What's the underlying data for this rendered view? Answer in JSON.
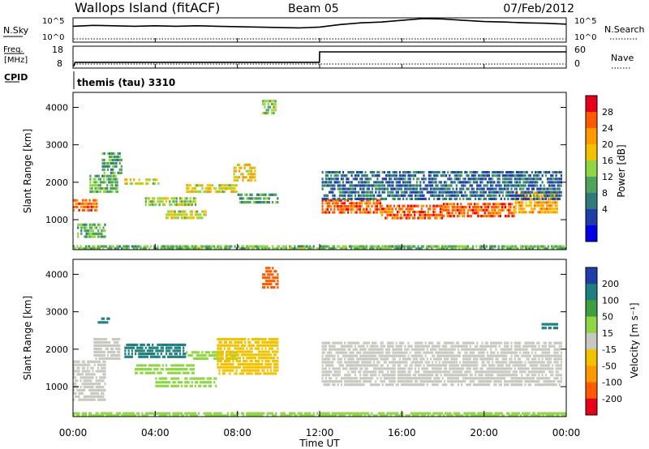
{
  "header": {
    "title": "Wallops Island (fitACF)",
    "beam": "Beam 05",
    "date": "07/Feb/2012"
  },
  "panels": {
    "nsky": {
      "label": "N.Sky",
      "ticks": [
        "10^5",
        "10^0"
      ]
    },
    "nsearch": {
      "label": "N.Search",
      "ticks": [
        "10^5",
        "10^0"
      ]
    },
    "freq": {
      "label_top": "Freq.",
      "label_unit": "[MHz]",
      "ticks": [
        "18",
        "8"
      ]
    },
    "nave": {
      "label": "Nave",
      "ticks": [
        "60",
        "0"
      ]
    },
    "cpid": {
      "label": "CPID",
      "value": "themis (tau) 3310"
    }
  },
  "axes": {
    "ylabel": "Slant Range [km]",
    "xlabel": "Time UT",
    "yticks": [
      "4000",
      "3000",
      "2000",
      "1000"
    ],
    "xticks": [
      "00:00",
      "04:00",
      "08:00",
      "12:00",
      "16:00",
      "20:00",
      "00:00"
    ]
  },
  "colorbars": {
    "power": {
      "label": "Power [dB]",
      "ticks": [
        "28",
        "24",
        "20",
        "16",
        "12",
        "8",
        "4"
      ],
      "colors": [
        "#e8001a",
        "#ff5a00",
        "#ff9900",
        "#f2c200",
        "#8fd646",
        "#4fa35c",
        "#2f7b7b",
        "#1f3ea8",
        "#0000e6"
      ]
    },
    "velocity": {
      "label": "Velocity [m s⁻¹]",
      "ticks": [
        "200",
        "100",
        "50",
        "15",
        "-15",
        "-50",
        "-100",
        "-200"
      ],
      "colors": [
        "#1f3ea8",
        "#1f7f7f",
        "#3f9f3f",
        "#8fd646",
        "#c8c8c0",
        "#f2c200",
        "#ff9900",
        "#ff5a00",
        "#e8001a"
      ]
    }
  },
  "chart_data": [
    {
      "type": "line",
      "name": "nsky",
      "xlim": [
        0,
        24
      ],
      "x": [
        0,
        1,
        2,
        3,
        4,
        5,
        6,
        7,
        8,
        9,
        10,
        11,
        12,
        13,
        14,
        15,
        16,
        17,
        18,
        19,
        20,
        21,
        22,
        23,
        24
      ],
      "y": [
        3.2,
        3.4,
        3.3,
        3.2,
        3.3,
        3.2,
        3.3,
        3.2,
        3.1,
        3.0,
        2.9,
        2.8,
        3.0,
        3.6,
        4.0,
        4.2,
        4.6,
        5.0,
        4.9,
        4.6,
        4.3,
        4.2,
        4.0,
        3.9,
        3.7
      ]
    },
    {
      "type": "line",
      "name": "frequency",
      "xlim": [
        0,
        24
      ],
      "ylim": [
        8,
        18
      ],
      "x": [
        0,
        0.05,
        0.1,
        11.99,
        12.0,
        24
      ],
      "y": [
        8.5,
        8.5,
        10.3,
        10.3,
        16.2,
        16.2
      ]
    },
    {
      "type": "heatmap",
      "name": "power",
      "xlim": [
        0,
        24
      ],
      "ylim": [
        200,
        4400
      ],
      "xlabel": "Time UT",
      "ylabel": "Slant Range [km]",
      "colorbar": "Power [dB]",
      "xticks": [
        "00:00",
        "04:00",
        "08:00",
        "12:00",
        "16:00",
        "20:00",
        "00:00"
      ],
      "yticks": [
        4000,
        3000,
        2000,
        1000
      ],
      "bands": [
        {
          "t0": 0.0,
          "t1": 1.2,
          "r0": 1200,
          "r1": 1550,
          "level": 26
        },
        {
          "t0": 0.2,
          "t1": 1.6,
          "r0": 500,
          "r1": 900,
          "level": 14
        },
        {
          "t0": 0.8,
          "t1": 2.2,
          "r0": 1700,
          "r1": 2200,
          "level": 14
        },
        {
          "t0": 1.4,
          "t1": 2.4,
          "r0": 2200,
          "r1": 2800,
          "level": 12
        },
        {
          "t0": 2.5,
          "t1": 4.2,
          "r0": 1900,
          "r1": 2100,
          "level": 18
        },
        {
          "t0": 3.5,
          "t1": 6.0,
          "r0": 1350,
          "r1": 1600,
          "level": 16
        },
        {
          "t0": 4.5,
          "t1": 6.5,
          "r0": 1000,
          "r1": 1250,
          "level": 18
        },
        {
          "t0": 5.5,
          "t1": 8.0,
          "r0": 1700,
          "r1": 1950,
          "level": 18
        },
        {
          "t0": 7.8,
          "t1": 8.9,
          "r0": 2000,
          "r1": 2500,
          "level": 20
        },
        {
          "t0": 8.0,
          "t1": 10.0,
          "r0": 1400,
          "r1": 1700,
          "level": 12
        },
        {
          "t0": 9.2,
          "t1": 9.9,
          "r0": 3800,
          "r1": 4200,
          "level": 16
        },
        {
          "t0": 12.1,
          "t1": 15.0,
          "r0": 1150,
          "r1": 1550,
          "level": 26
        },
        {
          "t0": 15.0,
          "t1": 18.0,
          "r0": 1000,
          "r1": 1400,
          "level": 26
        },
        {
          "t0": 18.0,
          "t1": 21.5,
          "r0": 1050,
          "r1": 1450,
          "level": 26
        },
        {
          "t0": 21.5,
          "t1": 23.6,
          "r0": 1150,
          "r1": 1750,
          "level": 22
        },
        {
          "t0": 12.1,
          "t1": 23.8,
          "r0": 1500,
          "r1": 2300,
          "level": 8
        },
        {
          "t0": 0.0,
          "t1": 24.0,
          "r0": 200,
          "r1": 320,
          "level": 14
        }
      ]
    },
    {
      "type": "heatmap",
      "name": "velocity",
      "xlim": [
        0,
        24
      ],
      "ylim": [
        200,
        4400
      ],
      "xlabel": "Time UT",
      "ylabel": "Slant Range [km]",
      "colorbar": "Velocity [m s-1]",
      "xticks": [
        "00:00",
        "04:00",
        "08:00",
        "12:00",
        "16:00",
        "20:00",
        "00:00"
      ],
      "yticks": [
        4000,
        3000,
        2000,
        1000
      ],
      "bands": [
        {
          "t0": 0.0,
          "t1": 1.6,
          "r0": 600,
          "r1": 1700,
          "level": 0
        },
        {
          "t0": 1.0,
          "t1": 2.3,
          "r0": 1700,
          "r1": 2300,
          "level": 0
        },
        {
          "t0": 1.2,
          "t1": 1.8,
          "r0": 2650,
          "r1": 2850,
          "level": 150
        },
        {
          "t0": 2.5,
          "t1": 5.5,
          "r0": 1750,
          "r1": 2150,
          "level": 150
        },
        {
          "t0": 3.0,
          "t1": 6.0,
          "r0": 1300,
          "r1": 1600,
          "level": 30
        },
        {
          "t0": 4.0,
          "t1": 7.0,
          "r0": 950,
          "r1": 1250,
          "level": 30
        },
        {
          "t0": 5.5,
          "t1": 8.0,
          "r0": 1700,
          "r1": 1950,
          "level": 30
        },
        {
          "t0": 7.0,
          "t1": 10.0,
          "r0": 1300,
          "r1": 2300,
          "level": -30
        },
        {
          "t0": 9.2,
          "t1": 10.0,
          "r0": 3600,
          "r1": 4200,
          "level": -150
        },
        {
          "t0": 12.1,
          "t1": 23.8,
          "r0": 1000,
          "r1": 2200,
          "level": 0
        },
        {
          "t0": 22.8,
          "t1": 23.6,
          "r0": 2500,
          "r1": 2700,
          "level": 150
        },
        {
          "t0": 0.0,
          "t1": 24.0,
          "r0": 200,
          "r1": 320,
          "level": 30
        }
      ]
    }
  ]
}
